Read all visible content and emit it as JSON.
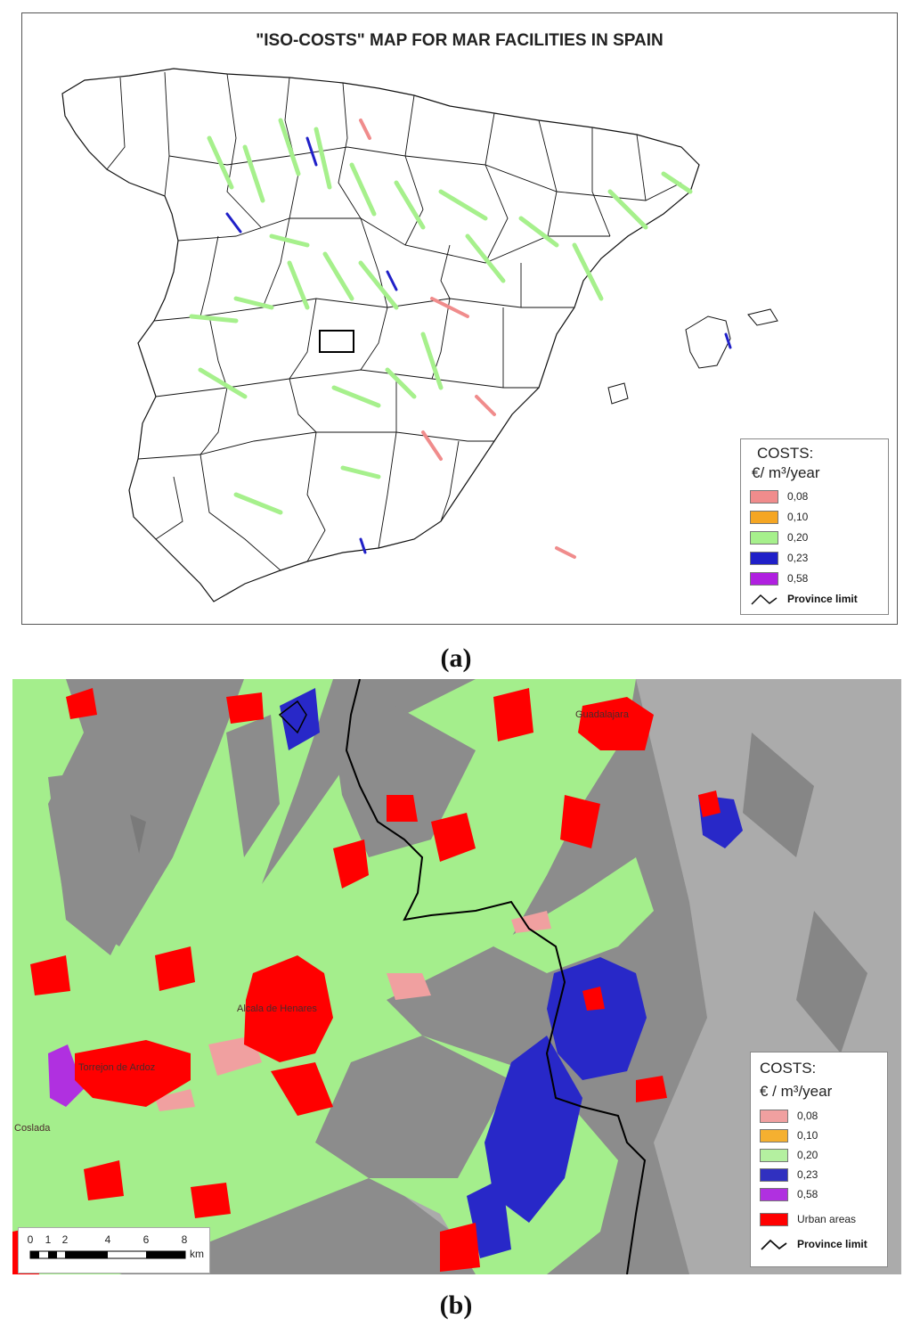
{
  "panel_a": {
    "title": "\"ISO-COSTS\" MAP FOR MAR FACILITIES IN SPAIN",
    "legend": {
      "title_line1": "COSTS:",
      "title_line2": "€/ m³/year",
      "items": [
        {
          "label": "0,08",
          "color": "#f08c8c"
        },
        {
          "label": "0,10",
          "color": "#f5a623"
        },
        {
          "label": "0,20",
          "color": "#a6f08c"
        },
        {
          "label": "0,23",
          "color": "#2020c8"
        },
        {
          "label": "0,58",
          "color": "#b020e0"
        }
      ],
      "province_limit": "Province limit"
    },
    "caption": "(a)"
  },
  "panel_b": {
    "towns": {
      "guadalajara": "Guadalajara",
      "alcala": "Alcala de Henares",
      "torrejon": "Torrejon de Ardoz",
      "coslada": "Coslada"
    },
    "legend": {
      "title_line1": "COSTS:",
      "title_line2": "€ / m³/year",
      "items": [
        {
          "label": "0,08",
          "color": "#f0a0a0"
        },
        {
          "label": "0,10",
          "color": "#f5b030"
        },
        {
          "label": "0,20",
          "color": "#b4f0a0"
        },
        {
          "label": "0,23",
          "color": "#3030c0"
        },
        {
          "label": "0,58",
          "color": "#b030e0"
        },
        {
          "label": "Urban areas",
          "color": "#ff0000"
        }
      ],
      "province_limit": "Province limit"
    },
    "scale": {
      "ticks": [
        "0",
        "1",
        "2",
        "4",
        "6",
        "8"
      ],
      "unit": "km"
    },
    "caption": "(b)"
  }
}
